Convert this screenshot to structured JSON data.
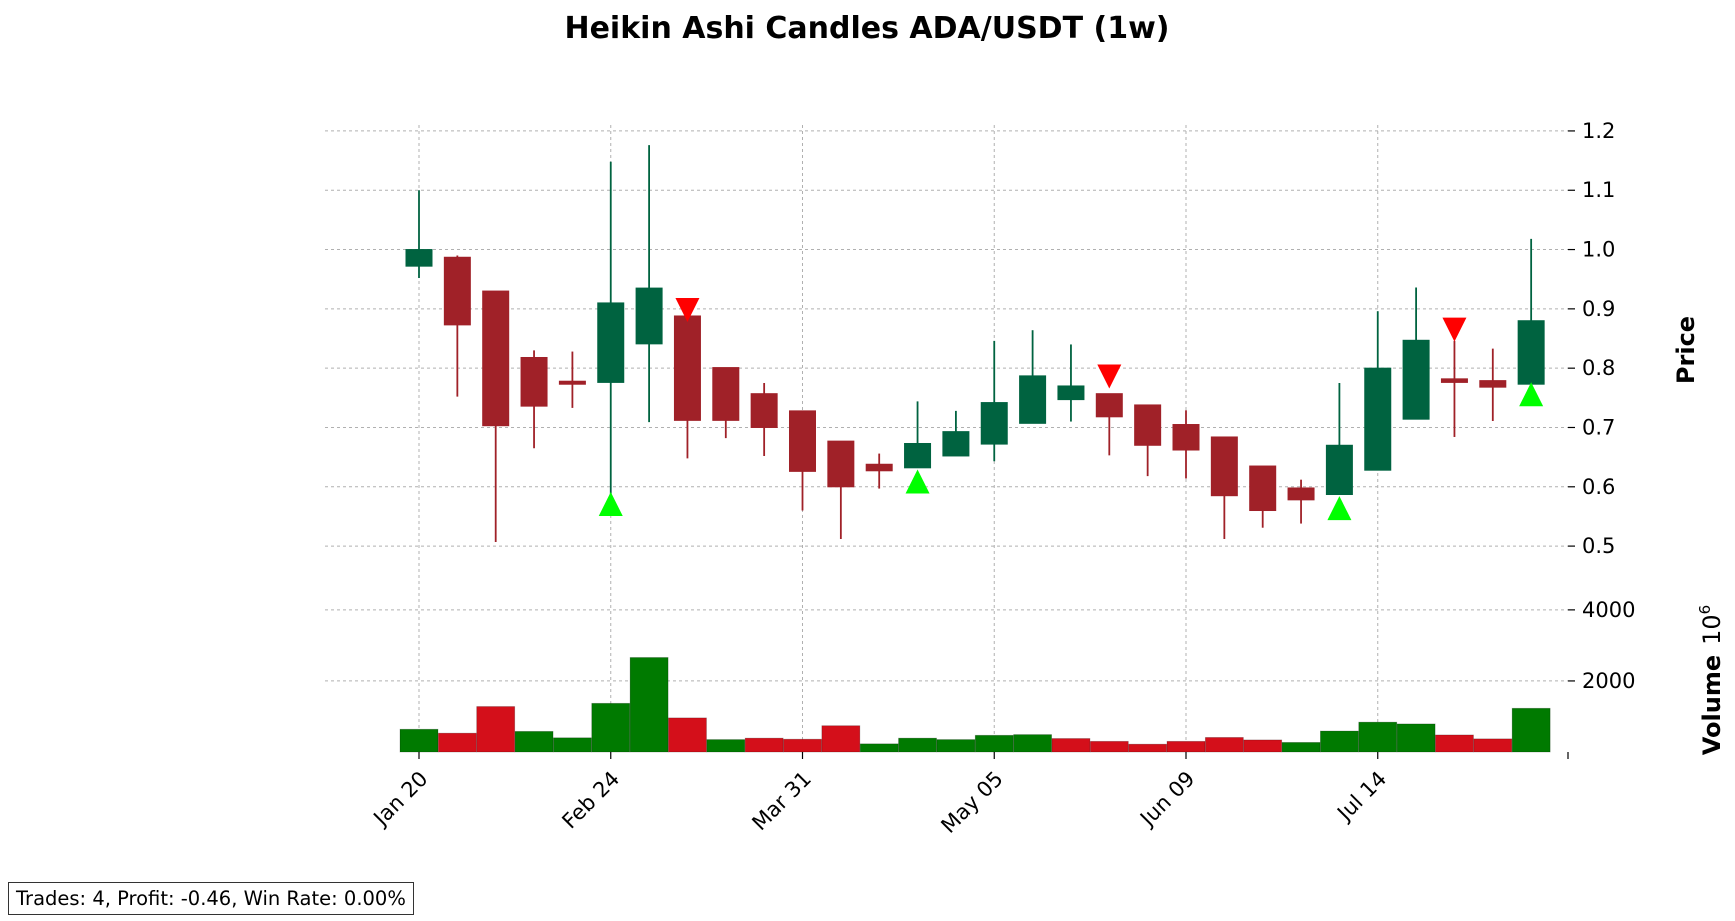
{
  "chart_data": {
    "type": "candlestick",
    "title": "Heikin Ashi Candles ADA/USDT (1w)",
    "ylabel": "Price",
    "volume_label": "Volume",
    "volume_exponent": "10",
    "volume_exponent_power": "6",
    "price_ylim": [
      0.485,
      1.21
    ],
    "price_ticks": [
      "0.5",
      "0.6",
      "0.7",
      "0.8",
      "0.9",
      "1.0",
      "1.1",
      "1.2"
    ],
    "volume_ylim": [
      0,
      4700
    ],
    "volume_ticks": [
      "2000",
      "4000"
    ],
    "x_tick_labels": [
      {
        "index": 0,
        "label": "Jan 20"
      },
      {
        "index": 5,
        "label": "Feb 24"
      },
      {
        "index": 10,
        "label": "Mar 31"
      },
      {
        "index": 15,
        "label": "May 05"
      },
      {
        "index": 20,
        "label": "Jun 09"
      },
      {
        "index": 25,
        "label": "Jul 14"
      }
    ],
    "colors": {
      "up_candle": "#006340",
      "down_candle": "#a02128",
      "up_volume": "#007a00",
      "down_volume": "#d40f1a",
      "buy_marker": "#00ff00",
      "sell_marker": "#ff0000"
    },
    "candles": [
      {
        "open": 0.972,
        "high": 1.1,
        "low": 0.952,
        "close": 1.0
      },
      {
        "open": 0.987,
        "high": 0.99,
        "low": 0.752,
        "close": 0.873
      },
      {
        "open": 0.93,
        "high": 0.93,
        "low": 0.507,
        "close": 0.703
      },
      {
        "open": 0.818,
        "high": 0.83,
        "low": 0.665,
        "close": 0.736
      },
      {
        "open": 0.778,
        "high": 0.828,
        "low": 0.733,
        "close": 0.775
      },
      {
        "open": 0.776,
        "high": 1.148,
        "low": 0.585,
        "close": 0.91
      },
      {
        "open": 0.841,
        "high": 1.176,
        "low": 0.709,
        "close": 0.935
      },
      {
        "open": 0.888,
        "high": 0.888,
        "low": 0.648,
        "close": 0.712
      },
      {
        "open": 0.801,
        "high": 0.801,
        "low": 0.682,
        "close": 0.712
      },
      {
        "open": 0.757,
        "high": 0.775,
        "low": 0.652,
        "close": 0.7
      },
      {
        "open": 0.728,
        "high": 0.728,
        "low": 0.56,
        "close": 0.626
      },
      {
        "open": 0.677,
        "high": 0.677,
        "low": 0.512,
        "close": 0.6
      },
      {
        "open": 0.638,
        "high": 0.656,
        "low": 0.597,
        "close": 0.627
      },
      {
        "open": 0.632,
        "high": 0.744,
        "low": 0.632,
        "close": 0.673
      },
      {
        "open": 0.652,
        "high": 0.728,
        "low": 0.652,
        "close": 0.693
      },
      {
        "open": 0.672,
        "high": 0.846,
        "low": 0.643,
        "close": 0.742
      },
      {
        "open": 0.707,
        "high": 0.864,
        "low": 0.707,
        "close": 0.787
      },
      {
        "open": 0.747,
        "high": 0.84,
        "low": 0.71,
        "close": 0.77
      },
      {
        "open": 0.757,
        "high": 0.757,
        "low": 0.653,
        "close": 0.718
      },
      {
        "open": 0.738,
        "high": 0.738,
        "low": 0.618,
        "close": 0.67
      },
      {
        "open": 0.705,
        "high": 0.729,
        "low": 0.614,
        "close": 0.662
      },
      {
        "open": 0.684,
        "high": 0.684,
        "low": 0.512,
        "close": 0.585
      },
      {
        "open": 0.635,
        "high": 0.635,
        "low": 0.531,
        "close": 0.56
      },
      {
        "open": 0.598,
        "high": 0.612,
        "low": 0.538,
        "close": 0.578
      },
      {
        "open": 0.587,
        "high": 0.775,
        "low": 0.587,
        "close": 0.67
      },
      {
        "open": 0.628,
        "high": 0.896,
        "low": 0.628,
        "close": 0.8
      },
      {
        "open": 0.714,
        "high": 0.936,
        "low": 0.714,
        "close": 0.847
      },
      {
        "open": 0.782,
        "high": 0.846,
        "low": 0.684,
        "close": 0.776
      },
      {
        "open": 0.779,
        "high": 0.833,
        "low": 0.711,
        "close": 0.768
      },
      {
        "open": 0.773,
        "high": 1.018,
        "low": 0.773,
        "close": 0.88
      }
    ],
    "volume": [
      {
        "value": 640,
        "direction": "up"
      },
      {
        "value": 530,
        "direction": "down"
      },
      {
        "value": 1280,
        "direction": "down"
      },
      {
        "value": 580,
        "direction": "up"
      },
      {
        "value": 400,
        "direction": "up"
      },
      {
        "value": 1370,
        "direction": "up"
      },
      {
        "value": 2660,
        "direction": "up"
      },
      {
        "value": 960,
        "direction": "down"
      },
      {
        "value": 350,
        "direction": "up"
      },
      {
        "value": 390,
        "direction": "down"
      },
      {
        "value": 360,
        "direction": "down"
      },
      {
        "value": 740,
        "direction": "down"
      },
      {
        "value": 230,
        "direction": "up"
      },
      {
        "value": 390,
        "direction": "up"
      },
      {
        "value": 350,
        "direction": "up"
      },
      {
        "value": 470,
        "direction": "up"
      },
      {
        "value": 490,
        "direction": "up"
      },
      {
        "value": 380,
        "direction": "down"
      },
      {
        "value": 300,
        "direction": "down"
      },
      {
        "value": 220,
        "direction": "down"
      },
      {
        "value": 300,
        "direction": "down"
      },
      {
        "value": 410,
        "direction": "down"
      },
      {
        "value": 340,
        "direction": "down"
      },
      {
        "value": 270,
        "direction": "up"
      },
      {
        "value": 590,
        "direction": "up"
      },
      {
        "value": 840,
        "direction": "up"
      },
      {
        "value": 790,
        "direction": "up"
      },
      {
        "value": 480,
        "direction": "down"
      },
      {
        "value": 370,
        "direction": "down"
      },
      {
        "value": 1230,
        "direction": "up"
      }
    ],
    "markers": [
      {
        "index": 5,
        "type": "buy",
        "price": 0.571
      },
      {
        "index": 7,
        "type": "sell",
        "price": 0.898
      },
      {
        "index": 13,
        "type": "buy",
        "price": 0.609
      },
      {
        "index": 18,
        "type": "sell",
        "price": 0.786
      },
      {
        "index": 24,
        "type": "buy",
        "price": 0.564
      },
      {
        "index": 27,
        "type": "sell",
        "price": 0.865
      },
      {
        "index": 29,
        "type": "buy",
        "price": 0.756
      }
    ]
  },
  "stats_text": "Trades: 4, Profit: -0.46, Win Rate: 0.00%"
}
